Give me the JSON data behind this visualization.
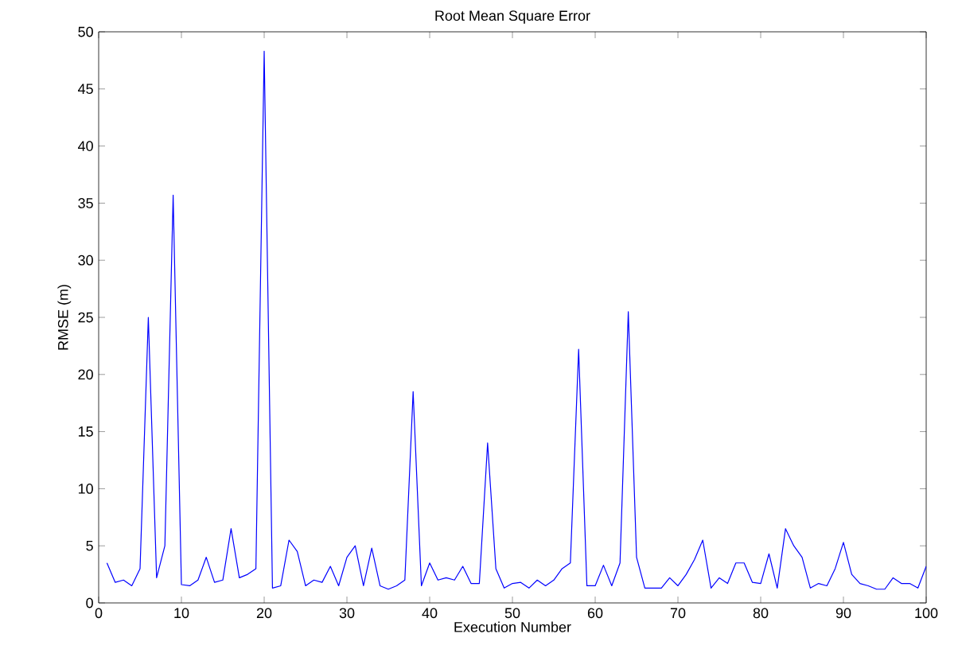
{
  "chart_data": {
    "type": "line",
    "title": "Root Mean Square Error",
    "xlabel": "Execution Number",
    "ylabel": "RMSE (m)",
    "x": [
      1,
      2,
      3,
      4,
      5,
      6,
      7,
      8,
      9,
      10,
      11,
      12,
      13,
      14,
      15,
      16,
      17,
      18,
      19,
      20,
      21,
      22,
      23,
      24,
      25,
      26,
      27,
      28,
      29,
      30,
      31,
      32,
      33,
      34,
      35,
      36,
      37,
      38,
      39,
      40,
      41,
      42,
      43,
      44,
      45,
      46,
      47,
      48,
      49,
      50,
      51,
      52,
      53,
      54,
      55,
      56,
      57,
      58,
      59,
      60,
      61,
      62,
      63,
      64,
      65,
      66,
      67,
      68,
      69,
      70,
      71,
      72,
      73,
      74,
      75,
      76,
      77,
      78,
      79,
      80,
      81,
      82,
      83,
      84,
      85,
      86,
      87,
      88,
      89,
      90,
      91,
      92,
      93,
      94,
      95,
      96,
      97,
      98,
      99,
      100
    ],
    "series": [
      {
        "color": "#0000ff",
        "values": [
          3.5,
          1.8,
          2,
          1.5,
          3,
          25,
          2.2,
          5,
          35.7,
          1.6,
          1.5,
          2,
          4,
          1.8,
          2,
          6.5,
          2.2,
          2.5,
          3,
          48.3,
          1.3,
          1.5,
          5.5,
          4.5,
          1.5,
          2,
          1.8,
          3.2,
          1.5,
          4,
          5,
          1.5,
          4.8,
          1.5,
          1.2,
          1.5,
          2,
          18.5,
          1.5,
          3.5,
          2,
          2.2,
          2,
          3.2,
          1.7,
          1.7,
          14,
          3,
          1.3,
          1.7,
          1.8,
          1.3,
          2,
          1.5,
          2,
          3,
          3.5,
          22.2,
          1.5,
          1.5,
          3.3,
          1.5,
          3.5,
          25.5,
          4,
          1.3,
          1.3,
          1.3,
          2.2,
          1.5,
          2.5,
          3.8,
          5.5,
          1.3,
          2.2,
          1.7,
          3.5,
          3.5,
          1.8,
          1.7,
          4.3,
          1.3,
          6.5,
          5,
          4,
          1.3,
          1.7,
          1.5,
          3,
          5.3,
          2.5,
          1.7,
          1.5,
          1.2,
          1.2,
          2.2,
          1.7,
          1.7,
          1.3,
          3.2
        ]
      }
    ],
    "xlim": [
      0,
      100
    ],
    "ylim": [
      0,
      50
    ],
    "xticks": [
      0,
      10,
      20,
      30,
      40,
      50,
      60,
      70,
      80,
      90,
      100
    ],
    "yticks": [
      0,
      5,
      10,
      15,
      20,
      25,
      30,
      35,
      40,
      45,
      50
    ],
    "grid": false,
    "marker": "none",
    "line_style": "solid"
  }
}
